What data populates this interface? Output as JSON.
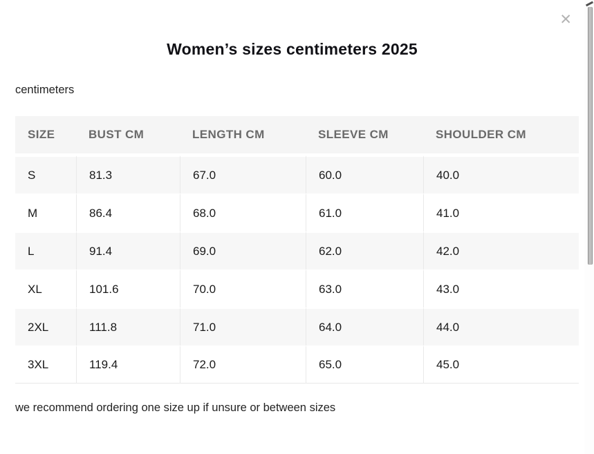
{
  "modal": {
    "title": "Women’s sizes centimeters 2025",
    "close_label": "✕",
    "unit_label": "centimeters",
    "footer_note": "we recommend ordering one size up if unsure or between sizes"
  },
  "table": {
    "columns": [
      "SIZE",
      "BUST CM",
      "LENGTH CM",
      "SLEEVE CM",
      "SHOULDER CM"
    ],
    "rows": [
      [
        "S",
        "81.3",
        "67.0",
        "60.0",
        "40.0"
      ],
      [
        "M",
        "86.4",
        "68.0",
        "61.0",
        "41.0"
      ],
      [
        "L",
        "91.4",
        "69.0",
        "62.0",
        "42.0"
      ],
      [
        "XL",
        "101.6",
        "70.0",
        "63.0",
        "43.0"
      ],
      [
        "2XL",
        "111.8",
        "71.0",
        "64.0",
        "44.0"
      ],
      [
        "3XL",
        "119.4",
        "72.0",
        "65.0",
        "45.0"
      ]
    ]
  },
  "colors": {
    "header_background": "#f5f5f5",
    "row_stripe": "#f7f7f7",
    "header_text": "#6a6a6a",
    "body_text": "#191919",
    "cell_border": "#e9e9e9",
    "close_icon": "#b3b3b3",
    "scrollbar_thumb": "#bfbfbf"
  }
}
